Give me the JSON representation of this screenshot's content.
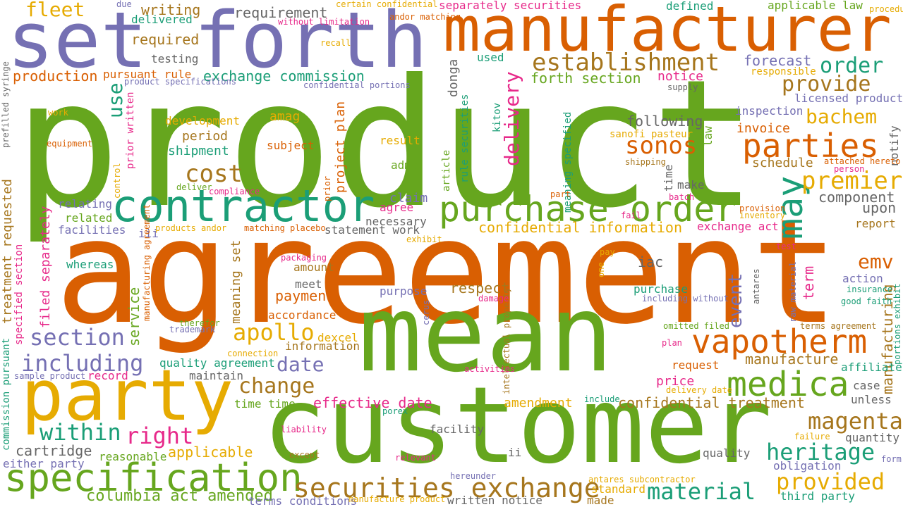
{
  "palette": {
    "green": "#66a61e",
    "orange": "#d95f02",
    "purple": "#7570b3",
    "gold": "#e6ab02",
    "brown": "#a6761d",
    "teal": "#1b9e77",
    "pink": "#e7298a",
    "gray": "#666666"
  },
  "words": [
    {
      "text": "product",
      "size": 250,
      "color": "green"
    },
    {
      "text": "agreement",
      "size": 205,
      "color": "orange"
    },
    {
      "text": "customer",
      "size": 150,
      "color": "green"
    },
    {
      "text": "mean",
      "size": 150,
      "color": "green"
    },
    {
      "text": "manufacturer",
      "size": 88,
      "color": "orange"
    },
    {
      "text": "set forth",
      "size": 110,
      "color": "purple"
    },
    {
      "text": "party",
      "size": 100,
      "color": "gold"
    },
    {
      "text": "contractor",
      "size": 62,
      "color": "teal"
    },
    {
      "text": "purchase order",
      "size": 50,
      "color": "green"
    },
    {
      "text": "specification",
      "size": 54,
      "color": "green"
    },
    {
      "text": "vapotherm",
      "size": 46,
      "color": "orange"
    },
    {
      "text": "medica",
      "size": 48,
      "color": "green"
    },
    {
      "text": "parties",
      "size": 46,
      "color": "orange"
    },
    {
      "text": "securities exchange",
      "size": 38,
      "color": "brown"
    },
    {
      "text": "may",
      "size": 50,
      "color": "teal"
    },
    {
      "text": "establishment",
      "size": 34,
      "color": "brown"
    },
    {
      "text": "sonos",
      "size": 34,
      "color": "orange"
    },
    {
      "text": "premier",
      "size": 34,
      "color": "gold"
    },
    {
      "text": "cost",
      "size": 34,
      "color": "brown"
    },
    {
      "text": "apollo",
      "size": 32,
      "color": "gold"
    },
    {
      "text": "provided",
      "size": 32,
      "color": "gold"
    },
    {
      "text": "heritage",
      "size": 32,
      "color": "teal"
    },
    {
      "text": "magenta",
      "size": 32,
      "color": "brown"
    },
    {
      "text": "material",
      "size": 32,
      "color": "teal"
    },
    {
      "text": "right",
      "size": 32,
      "color": "pink"
    },
    {
      "text": "within",
      "size": 32,
      "color": "teal"
    },
    {
      "text": "section",
      "size": 32,
      "color": "purple"
    },
    {
      "text": "including",
      "size": 32,
      "color": "purple"
    },
    {
      "text": "change",
      "size": 30,
      "color": "brown"
    },
    {
      "text": "provide",
      "size": 30,
      "color": "brown"
    },
    {
      "text": "order",
      "size": 30,
      "color": "teal"
    },
    {
      "text": "bachem",
      "size": 28,
      "color": "gold"
    },
    {
      "text": "emv",
      "size": 28,
      "color": "orange"
    },
    {
      "text": "delivery",
      "size": 28,
      "color": "pink"
    },
    {
      "text": "date",
      "size": 28,
      "color": "purple"
    },
    {
      "text": "use",
      "size": 28,
      "color": "teal"
    },
    {
      "text": "fleet",
      "size": 28,
      "color": "gold"
    },
    {
      "text": "event",
      "size": 26,
      "color": "purple"
    },
    {
      "text": "columbia act amended",
      "size": 22,
      "color": "green"
    },
    {
      "text": "confidential information",
      "size": 20,
      "color": "gold"
    },
    {
      "text": "confidential treatment",
      "size": 20,
      "color": "brown"
    },
    {
      "text": "effective date",
      "size": 20,
      "color": "pink"
    },
    {
      "text": "exchange commission",
      "size": 20,
      "color": "teal"
    },
    {
      "text": "forth section",
      "size": 20,
      "color": "green"
    },
    {
      "text": "following",
      "size": 20,
      "color": "gray"
    },
    {
      "text": "forecast",
      "size": 20,
      "color": "purple"
    },
    {
      "text": "requirement",
      "size": 20,
      "color": "gray"
    },
    {
      "text": "writing",
      "size": 20,
      "color": "brown"
    },
    {
      "text": "required",
      "size": 20,
      "color": "brown"
    },
    {
      "text": "production",
      "size": 20,
      "color": "orange"
    },
    {
      "text": "payment",
      "size": 20,
      "color": "orange"
    },
    {
      "text": "respect",
      "size": 20,
      "color": "brown"
    },
    {
      "text": "manufacture",
      "size": 20,
      "color": "brown"
    },
    {
      "text": "applicable",
      "size": 20,
      "color": "gold"
    },
    {
      "text": "cartridge",
      "size": 20,
      "color": "gray"
    },
    {
      "text": "iac",
      "size": 20,
      "color": "gray"
    },
    {
      "text": "service",
      "size": 20,
      "color": "green"
    },
    {
      "text": "term",
      "size": 20,
      "color": "pink"
    },
    {
      "text": "manufacturing",
      "size": 20,
      "color": "brown"
    },
    {
      "text": "component",
      "size": 20,
      "color": "gray"
    },
    {
      "text": "upon",
      "size": 20,
      "color": "gray"
    },
    {
      "text": "schedule",
      "size": 18,
      "color": "brown"
    },
    {
      "text": "invoice",
      "size": 18,
      "color": "orange"
    },
    {
      "text": "period",
      "size": 18,
      "color": "brown"
    },
    {
      "text": "shipment",
      "size": 18,
      "color": "teal"
    },
    {
      "text": "amag",
      "size": 18,
      "color": "gold"
    },
    {
      "text": "claim",
      "size": 18,
      "color": "purple"
    },
    {
      "text": "price",
      "size": 18,
      "color": "pink"
    },
    {
      "text": "amendment",
      "size": 18,
      "color": "gold"
    },
    {
      "text": "project plan",
      "size": 18,
      "color": "orange"
    },
    {
      "text": "meaning set",
      "size": 18,
      "color": "brown"
    },
    {
      "text": "filed separately",
      "size": 18,
      "color": "pink"
    },
    {
      "text": "treatment requested",
      "size": 18,
      "color": "brown"
    },
    {
      "text": "notice",
      "size": 18,
      "color": "pink"
    },
    {
      "text": "donga",
      "size": 18,
      "color": "gray"
    },
    {
      "text": "facility",
      "size": 16,
      "color": "gray"
    },
    {
      "text": "quality",
      "size": 16,
      "color": "gray"
    },
    {
      "text": "unless",
      "size": 16,
      "color": "gray"
    },
    {
      "text": "case",
      "size": 16,
      "color": "gray"
    },
    {
      "text": "quantity",
      "size": 16,
      "color": "gray"
    },
    {
      "text": "obligation",
      "size": 16,
      "color": "purple"
    },
    {
      "text": "action",
      "size": 16,
      "color": "purple"
    },
    {
      "text": "affiliate",
      "size": 16,
      "color": "teal"
    },
    {
      "text": "written notice",
      "size": 16,
      "color": "gray"
    },
    {
      "text": "third party",
      "size": 16,
      "color": "teal"
    },
    {
      "text": "standard",
      "size": 16,
      "color": "gold"
    },
    {
      "text": "made",
      "size": 16,
      "color": "brown"
    },
    {
      "text": "time time",
      "size": 16,
      "color": "green"
    },
    {
      "text": "record",
      "size": 16,
      "color": "pink"
    },
    {
      "text": "maintain",
      "size": 16,
      "color": "gray"
    },
    {
      "text": "quality agreement",
      "size": 16,
      "color": "teal"
    },
    {
      "text": "information",
      "size": 16,
      "color": "brown"
    },
    {
      "text": "dexcel",
      "size": 16,
      "color": "gold"
    },
    {
      "text": "accordance",
      "size": 16,
      "color": "orange"
    },
    {
      "text": "purpose",
      "size": 16,
      "color": "purple"
    },
    {
      "text": "meet",
      "size": 16,
      "color": "gray"
    },
    {
      "text": "amount",
      "size": 16,
      "color": "brown"
    },
    {
      "text": "purchase",
      "size": 16,
      "color": "teal"
    },
    {
      "text": "necessary",
      "size": 16,
      "color": "gray"
    },
    {
      "text": "statement work",
      "size": 16,
      "color": "gray"
    },
    {
      "text": "agree",
      "size": 16,
      "color": "pink"
    },
    {
      "text": "adma",
      "size": 16,
      "color": "green"
    },
    {
      "text": "result",
      "size": 16,
      "color": "gold"
    },
    {
      "text": "subject",
      "size": 16,
      "color": "orange"
    },
    {
      "text": "development",
      "size": 16,
      "color": "gold"
    },
    {
      "text": "testing",
      "size": 16,
      "color": "gray"
    },
    {
      "text": "pursuant rule",
      "size": 16,
      "color": "orange"
    },
    {
      "text": "delivered",
      "size": 16,
      "color": "teal"
    },
    {
      "text": "related",
      "size": 16,
      "color": "green"
    },
    {
      "text": "relating",
      "size": 16,
      "color": "purple"
    },
    {
      "text": "facilities",
      "size": 16,
      "color": "purple"
    },
    {
      "text": "whereas",
      "size": 16,
      "color": "teal"
    },
    {
      "text": "iii",
      "size": 16,
      "color": "purple"
    },
    {
      "text": "ii",
      "size": 16,
      "color": "gray"
    },
    {
      "text": "reasonable",
      "size": 16,
      "color": "green"
    },
    {
      "text": "either party",
      "size": 16,
      "color": "purple"
    },
    {
      "text": "terms conditions",
      "size": 16,
      "color": "purple"
    },
    {
      "text": "exchange act",
      "size": 16,
      "color": "pink"
    },
    {
      "text": "report",
      "size": 16,
      "color": "brown"
    },
    {
      "text": "inspection",
      "size": 16,
      "color": "purple"
    },
    {
      "text": "licensed product",
      "size": 16,
      "color": "purple"
    },
    {
      "text": "request",
      "size": 16,
      "color": "orange"
    },
    {
      "text": "defined",
      "size": 16,
      "color": "teal"
    },
    {
      "text": "applicable law",
      "size": 16,
      "color": "green"
    },
    {
      "text": "used",
      "size": 16,
      "color": "teal"
    },
    {
      "text": "make",
      "size": 16,
      "color": "gray"
    },
    {
      "text": "separately securities",
      "size": 16,
      "color": "pink"
    },
    {
      "text": "time",
      "size": 16,
      "color": "gray"
    },
    {
      "text": "law",
      "size": 16,
      "color": "green"
    },
    {
      "text": "notify",
      "size": 16,
      "color": "gray"
    },
    {
      "text": "sanofi pasteur",
      "size": 14,
      "color": "gold"
    },
    {
      "text": "responsible",
      "size": 14,
      "color": "gold"
    },
    {
      "text": "rule securities",
      "size": 14,
      "color": "teal"
    },
    {
      "text": "kitov",
      "size": 14,
      "color": "teal"
    },
    {
      "text": "meaning specified",
      "size": 14,
      "color": "teal"
    },
    {
      "text": "prior written",
      "size": 14,
      "color": "pink"
    },
    {
      "text": "specified section",
      "size": 14,
      "color": "pink"
    },
    {
      "text": "commission pursuant",
      "size": 14,
      "color": "teal"
    },
    {
      "text": "article",
      "size": 14,
      "color": "green"
    },
    {
      "text": "intellectual property",
      "size": 12,
      "color": "brown"
    },
    {
      "text": "certain confidential",
      "size": 12,
      "color": "gold"
    },
    {
      "text": "matching placebo",
      "size": 12,
      "color": "orange"
    },
    {
      "text": "products andor",
      "size": 12,
      "color": "gold"
    },
    {
      "text": "compliance",
      "size": 12,
      "color": "pink"
    },
    {
      "text": "deliver",
      "size": 12,
      "color": "green"
    },
    {
      "text": "packaging",
      "size": 12,
      "color": "pink"
    },
    {
      "text": "exhibit",
      "size": 12,
      "color": "gold"
    },
    {
      "text": "pay",
      "size": 12,
      "color": "gold"
    },
    {
      "text": "test",
      "size": 12,
      "color": "pink"
    },
    {
      "text": "omitted filed",
      "size": 12,
      "color": "green"
    },
    {
      "text": "terms agreement",
      "size": 12,
      "color": "brown"
    },
    {
      "text": "sample product",
      "size": 12,
      "color": "purple"
    },
    {
      "text": "liability",
      "size": 12,
      "color": "pink"
    },
    {
      "text": "except",
      "size": 12,
      "color": "brown"
    },
    {
      "text": "relevant",
      "size": 12,
      "color": "pink"
    },
    {
      "text": "manufacture product",
      "size": 12,
      "color": "gold"
    },
    {
      "text": "antares subcontractor",
      "size": 12,
      "color": "gold"
    },
    {
      "text": "antares",
      "size": 12,
      "color": "gray"
    },
    {
      "text": "failure",
      "size": 12,
      "color": "gold"
    },
    {
      "text": "form",
      "size": 12,
      "color": "purple"
    },
    {
      "text": "hereunder",
      "size": 12,
      "color": "purple"
    },
    {
      "text": "equipment",
      "size": 12,
      "color": "orange"
    },
    {
      "text": "work",
      "size": 12,
      "color": "gold"
    },
    {
      "text": "prefilled syringe",
      "size": 12,
      "color": "gray"
    },
    {
      "text": "control",
      "size": 12,
      "color": "gold"
    },
    {
      "text": "provision",
      "size": 12,
      "color": "orange"
    },
    {
      "text": "inventory",
      "size": 12,
      "color": "gold"
    },
    {
      "text": "fail",
      "size": 12,
      "color": "pink"
    },
    {
      "text": "good faith",
      "size": 12,
      "color": "teal"
    },
    {
      "text": "insurance",
      "size": 12,
      "color": "teal"
    },
    {
      "text": "portions exhibit",
      "size": 12,
      "color": "teal"
    },
    {
      "text": "attached hereto",
      "size": 12,
      "color": "orange"
    },
    {
      "text": "person",
      "size": 12,
      "color": "pink"
    },
    {
      "text": "shipping",
      "size": 12,
      "color": "brown"
    },
    {
      "text": "including without",
      "size": 12,
      "color": "purple"
    },
    {
      "text": "without limitation",
      "size": 12,
      "color": "pink"
    },
    {
      "text": "product specifications",
      "size": 12,
      "color": "purple"
    },
    {
      "text": "confidential portions",
      "size": 12,
      "color": "purple"
    },
    {
      "text": "supply",
      "size": 12,
      "color": "gray"
    },
    {
      "text": "procedure",
      "size": 12,
      "color": "gold"
    },
    {
      "text": "andor matching",
      "size": 12,
      "color": "orange"
    },
    {
      "text": "recall",
      "size": 12,
      "color": "gold"
    },
    {
      "text": "due",
      "size": 12,
      "color": "purple"
    },
    {
      "text": "raw material",
      "size": 12,
      "color": "purple"
    },
    {
      "text": "damage",
      "size": 12,
      "color": "pink"
    },
    {
      "text": "activities",
      "size": 12,
      "color": "pink"
    },
    {
      "text": "cerus",
      "size": 12,
      "color": "purple"
    },
    {
      "text": "porex",
      "size": 12,
      "color": "teal"
    },
    {
      "text": "include",
      "size": 12,
      "color": "teal"
    },
    {
      "text": "delivery date",
      "size": 12,
      "color": "gold"
    },
    {
      "text": "trademark",
      "size": 12,
      "color": "purple"
    },
    {
      "text": "therefor",
      "size": 12,
      "color": "green"
    },
    {
      "text": "connection",
      "size": 12,
      "color": "gold"
    },
    {
      "text": "manufacturing agreement",
      "size": 12,
      "color": "orange"
    },
    {
      "text": "plan",
      "size": 12,
      "color": "pink"
    },
    {
      "text": "batch",
      "size": 12,
      "color": "pink"
    },
    {
      "text": "part",
      "size": 12,
      "color": "orange"
    },
    {
      "text": "one",
      "size": 12,
      "color": "gold"
    },
    {
      "text": "prior",
      "size": 12,
      "color": "orange"
    }
  ]
}
